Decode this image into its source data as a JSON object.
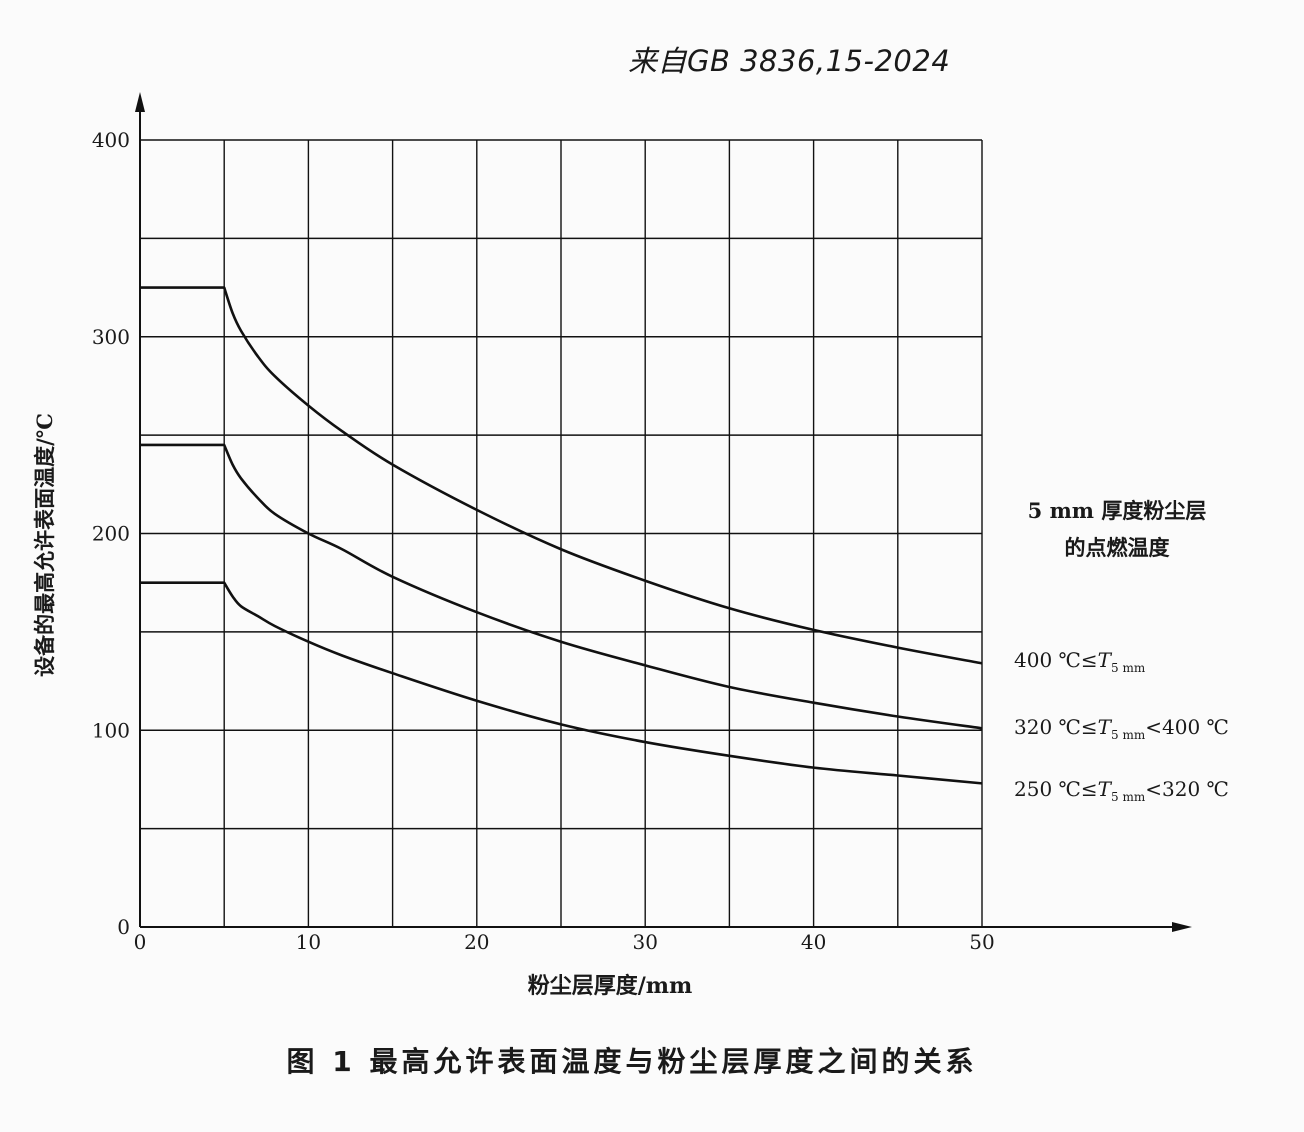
{
  "source_note": "来自GB 3836,15-2024",
  "figure_caption": "图 1   最高允许表面温度与粉尘层厚度之间的关系",
  "legend": {
    "title_line1": "5  mm 厚度粉尘层",
    "title_line2": "的点燃温度",
    "items": [
      {
        "pre": "400 ℃≤",
        "sym": "T",
        "sub": "5 mm",
        "post": ""
      },
      {
        "pre": "320 ℃≤",
        "sym": "T",
        "sub": "5 mm",
        "post": "<400 ℃"
      },
      {
        "pre": "250 ℃≤",
        "sym": "T",
        "sub": "5 mm",
        "post": "<320 ℃"
      }
    ]
  },
  "chart_data": {
    "type": "line",
    "xlabel": "粉尘层厚度/mm",
    "ylabel": "设备的最高允许表面温度/℃",
    "xlim": [
      0,
      50
    ],
    "ylim": [
      0,
      400
    ],
    "x_ticks": [
      0,
      10,
      20,
      30,
      40,
      50
    ],
    "y_ticks": [
      0,
      100,
      200,
      300,
      400
    ],
    "grid": true,
    "line_color": "#111111",
    "series": [
      {
        "x": [
          0,
          5,
          5.5,
          6,
          7,
          8,
          10,
          12,
          15,
          20,
          25,
          30,
          35,
          40,
          45,
          50
        ],
        "y": [
          325,
          325,
          312,
          303,
          290,
          280,
          265,
          252,
          235,
          212,
          192,
          176,
          162,
          151,
          142,
          134
        ]
      },
      {
        "x": [
          0,
          5,
          5.5,
          6,
          7,
          8,
          10,
          12,
          15,
          20,
          25,
          30,
          35,
          40,
          45,
          50
        ],
        "y": [
          245,
          245,
          235,
          228,
          218,
          210,
          200,
          192,
          178,
          160,
          145,
          133,
          122,
          114,
          107,
          101
        ]
      },
      {
        "x": [
          0,
          5,
          5.5,
          6,
          7,
          8,
          10,
          12,
          15,
          20,
          25,
          30,
          35,
          40,
          45,
          50
        ],
        "y": [
          175,
          175,
          168,
          163,
          158,
          153,
          145,
          138,
          129,
          115,
          103,
          94,
          87,
          81,
          77,
          73
        ]
      }
    ]
  }
}
